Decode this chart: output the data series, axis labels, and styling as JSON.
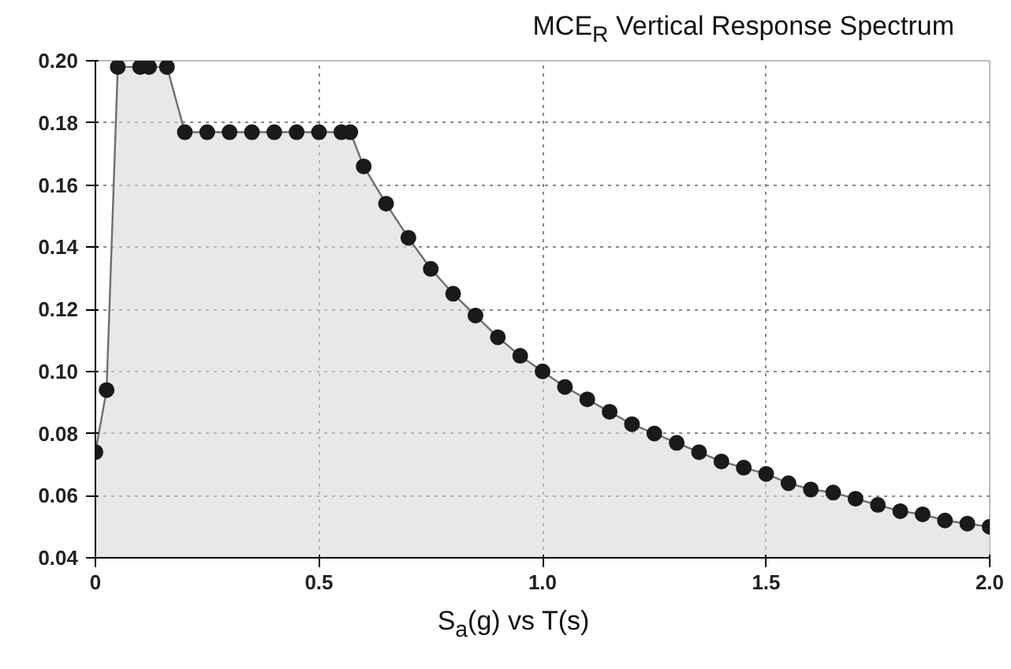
{
  "chart_data": {
    "type": "area",
    "title": "MCE$_{R}$ Vertical Response Spectrum",
    "xlabel": "S$_{a}$(g) vs T(s)",
    "xlim": [
      0,
      2.0
    ],
    "ylim": [
      0.04,
      0.2
    ],
    "xticks": [
      {
        "value": 0,
        "label": "0"
      },
      0.5,
      {
        "value": 1.0,
        "label": "1.0"
      },
      1.5,
      {
        "value": 2.0,
        "label": "2.0"
      }
    ],
    "yticks": [
      {
        "value": 0.04,
        "label": "0.04"
      },
      {
        "value": 0.06,
        "label": "0.06"
      },
      {
        "value": 0.08,
        "label": "0.08"
      },
      {
        "value": 0.1,
        "label": "0.10"
      },
      {
        "value": 0.12,
        "label": "0.12"
      },
      {
        "value": 0.14,
        "label": "0.14"
      },
      {
        "value": 0.16,
        "label": "0.16"
      },
      {
        "value": 0.18,
        "label": "0.18"
      },
      {
        "value": 0.2,
        "label": "0.20"
      }
    ],
    "grid": true,
    "marker": "circle",
    "line_style": "solid",
    "series": [
      {
        "color": "#6e6e6e",
        "x": [
          0,
          0.025,
          0.05,
          0.1,
          0.12,
          0.16,
          0.2,
          0.25,
          0.3,
          0.35,
          0.4,
          0.45,
          0.5,
          0.55,
          0.57,
          0.6,
          0.65,
          0.7,
          0.75,
          0.8,
          0.85,
          0.9,
          0.95,
          1.0,
          1.05,
          1.1,
          1.15,
          1.2,
          1.25,
          1.3,
          1.35,
          1.4,
          1.45,
          1.5,
          1.55,
          1.6,
          1.65,
          1.7,
          1.75,
          1.8,
          1.85,
          1.9,
          1.95,
          2.0
        ],
        "values": [
          0.074,
          0.094,
          0.198,
          0.198,
          0.198,
          0.198,
          0.177,
          0.177,
          0.177,
          0.177,
          0.177,
          0.177,
          0.177,
          0.177,
          0.177,
          0.166,
          0.154,
          0.143,
          0.133,
          0.125,
          0.118,
          0.111,
          0.105,
          0.1,
          0.095,
          0.091,
          0.087,
          0.083,
          0.08,
          0.077,
          0.074,
          0.071,
          0.069,
          0.067,
          0.064,
          0.062,
          0.061,
          0.059,
          0.057,
          0.055,
          0.054,
          0.052,
          0.051,
          0.05
        ]
      }
    ]
  }
}
